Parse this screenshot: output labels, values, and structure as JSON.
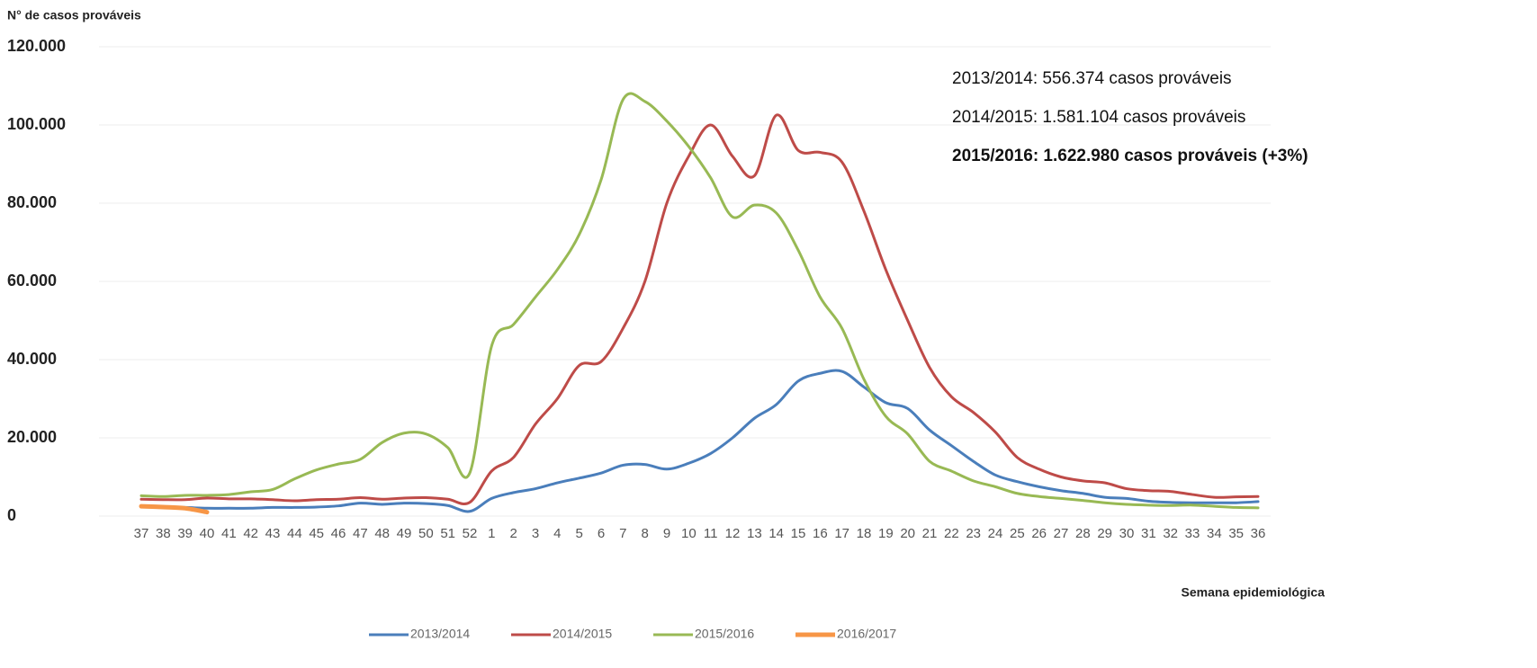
{
  "chart_data": {
    "type": "line",
    "y_label": "N° de casos prováveis",
    "x_label": "Semana epidemiológica",
    "annotations": [
      {
        "text": "2013/2014: 556.374 casos prováveis",
        "bold": false
      },
      {
        "text": "2014/2015: 1.581.104 casos prováveis",
        "bold": false
      },
      {
        "text": "2015/2016: 1.622.980 casos prováveis (+3%)",
        "bold": true
      }
    ],
    "categories": [
      "37",
      "38",
      "39",
      "40",
      "41",
      "42",
      "43",
      "44",
      "45",
      "46",
      "47",
      "48",
      "49",
      "50",
      "51",
      "52",
      "1",
      "2",
      "3",
      "4",
      "5",
      "6",
      "7",
      "8",
      "9",
      "10",
      "11",
      "12",
      "13",
      "14",
      "15",
      "16",
      "17",
      "18",
      "19",
      "20",
      "21",
      "22",
      "23",
      "24",
      "25",
      "26",
      "27",
      "28",
      "29",
      "30",
      "31",
      "32",
      "33",
      "34",
      "35",
      "36"
    ],
    "ylim": [
      0,
      120000
    ],
    "yticks": [
      0,
      {
        "value": 20000,
        "label": "20.000"
      },
      {
        "value": 40000,
        "label": "40.000"
      },
      {
        "value": 60000,
        "label": "60.000"
      },
      {
        "value": 80000,
        "label": "80.000"
      },
      {
        "value": 100000,
        "label": "100.000"
      },
      {
        "value": 120000,
        "label": "120.000"
      }
    ],
    "grid": true,
    "legend": "bottom",
    "series": [
      {
        "name": "2013/2014",
        "color": "#4a7ebb",
        "values": [
          2500,
          2300,
          2200,
          2000,
          2000,
          2000,
          2200,
          2200,
          2300,
          2600,
          3300,
          3000,
          3300,
          3200,
          2700,
          1200,
          4500,
          6000,
          7000,
          8500,
          9700,
          11000,
          13000,
          13200,
          12000,
          13500,
          16000,
          20000,
          25000,
          28500,
          34500,
          36500,
          37000,
          33000,
          29000,
          27500,
          22000,
          18000,
          14000,
          10500,
          8800,
          7500,
          6500,
          5800,
          4800,
          4500,
          3800,
          3500,
          3400,
          3400,
          3400,
          3700
        ]
      },
      {
        "name": "2014/2015",
        "color": "#be4b48",
        "values": [
          4300,
          4200,
          4200,
          4600,
          4400,
          4400,
          4200,
          3900,
          4200,
          4300,
          4700,
          4300,
          4600,
          4700,
          4300,
          3500,
          11500,
          15000,
          23500,
          30000,
          38500,
          39500,
          48000,
          60000,
          80000,
          92000,
          100000,
          92000,
          87000,
          102500,
          93500,
          93000,
          90500,
          78000,
          63000,
          50000,
          38000,
          30500,
          26500,
          21500,
          15000,
          12000,
          10000,
          9000,
          8500,
          7000,
          6500,
          6300,
          5500,
          4800,
          4900,
          5000
        ]
      },
      {
        "name": "2015/2016",
        "color": "#98b954",
        "values": [
          5200,
          5000,
          5300,
          5300,
          5500,
          6200,
          6800,
          9500,
          11800,
          13300,
          14500,
          18800,
          21200,
          21000,
          17500,
          11000,
          43500,
          49000,
          56000,
          63000,
          72000,
          86000,
          106500,
          106000,
          101000,
          94500,
          86500,
          76500,
          79500,
          77500,
          68000,
          56000,
          48000,
          35000,
          25500,
          21000,
          14000,
          11500,
          9000,
          7500,
          5800,
          5000,
          4500,
          4000,
          3400,
          3000,
          2800,
          2700,
          2800,
          2500,
          2200,
          2100
        ]
      },
      {
        "name": "2016/2017",
        "color": "#f79646",
        "values": [
          2500,
          2300,
          2000,
          1000,
          null,
          null,
          null,
          null,
          null,
          null,
          null,
          null,
          null,
          null,
          null,
          null,
          null,
          null,
          null,
          null,
          null,
          null,
          null,
          null,
          null,
          null,
          null,
          null,
          null,
          null,
          null,
          null,
          null,
          null,
          null,
          null,
          null,
          null,
          null,
          null,
          null,
          null,
          null,
          null,
          null,
          null,
          null,
          null,
          null,
          null,
          null,
          null
        ]
      }
    ]
  }
}
